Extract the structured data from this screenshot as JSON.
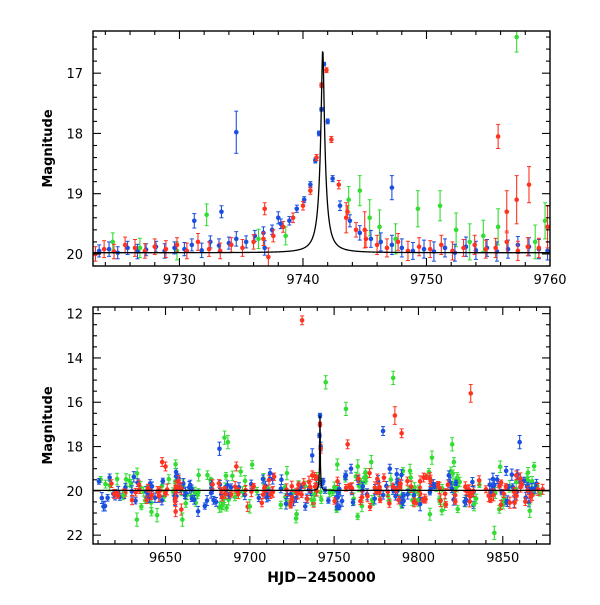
{
  "chart_data": [
    {
      "id": "top",
      "type": "scatter",
      "title": "",
      "xlabel": "",
      "ylabel": "Magnitude",
      "xlim": [
        9723,
        9760
      ],
      "ylim": [
        20.2,
        16.3
      ],
      "y_inverted": true,
      "grid": false,
      "xticks": [
        9730,
        9740,
        9750,
        9760
      ],
      "xtick_labels": [
        "9730",
        "9740",
        "9750",
        "9760"
      ],
      "yticks": [
        17,
        18,
        19,
        20
      ],
      "ytick_labels": [
        "17",
        "18",
        "19",
        "20"
      ],
      "model_curve": {
        "name": "model",
        "color": "#000000",
        "baseline": 19.98,
        "peak_time": 9741.6,
        "peak_mag": 16.6,
        "tE": 0.7
      },
      "series": [
        {
          "name": "blue",
          "color": "#1a4fe0",
          "x": [
            9723.5,
            9724.3,
            9725.0,
            9725.8,
            9726.6,
            9727.3,
            9728.1,
            9728.8,
            9729.6,
            9730.4,
            9731.0,
            9731.8,
            9732.5,
            9733.2,
            9734.0,
            9734.6,
            9735.4,
            9736.1,
            9736.8,
            9737.5,
            9738.2,
            9738.9,
            9739.5,
            9740.1,
            9740.6,
            9741.0,
            9741.3,
            9741.5,
            9741.7,
            9742.0,
            9742.4,
            9743.0,
            9743.8,
            9744.6,
            9745.5,
            9746.3,
            9747.2,
            9748.0,
            9748.9,
            9749.8,
            9750.6,
            9751.5,
            9752.3,
            9753.2,
            9754.0,
            9754.9,
            9755.7,
            9756.6,
            9757.4,
            9758.3,
            9759.1,
            9759.8,
            9731.2,
            9733.4,
            9734.6,
            9736.9,
            9738.0,
            9747.2
          ],
          "y": [
            19.95,
            19.92,
            19.98,
            19.9,
            19.96,
            19.93,
            19.88,
            19.95,
            19.9,
            19.92,
            19.85,
            19.94,
            19.8,
            19.86,
            19.82,
            19.75,
            19.8,
            19.7,
            19.65,
            19.6,
            19.5,
            19.45,
            19.25,
            19.1,
            18.85,
            18.45,
            18.0,
            17.6,
            16.85,
            17.8,
            18.75,
            19.2,
            19.45,
            19.65,
            19.75,
            19.8,
            19.85,
            19.9,
            19.95,
            19.92,
            19.96,
            19.9,
            19.98,
            19.88,
            19.94,
            19.9,
            19.96,
            19.92,
            19.85,
            19.88,
            19.92,
            19.95,
            19.45,
            19.3,
            17.98,
            19.9,
            19.4,
            18.9
          ],
          "err": [
            0.1,
            0.12,
            0.1,
            0.11,
            0.12,
            0.1,
            0.09,
            0.12,
            0.1,
            0.11,
            0.1,
            0.12,
            0.1,
            0.11,
            0.1,
            0.12,
            0.1,
            0.09,
            0.1,
            0.08,
            0.08,
            0.07,
            0.06,
            0.05,
            0.05,
            0.04,
            0.04,
            0.03,
            0.03,
            0.04,
            0.05,
            0.08,
            0.1,
            0.12,
            0.14,
            0.15,
            0.16,
            0.15,
            0.14,
            0.15,
            0.16,
            0.15,
            0.14,
            0.16,
            0.15,
            0.14,
            0.16,
            0.15,
            0.14,
            0.15,
            0.16,
            0.15,
            0.12,
            0.1,
            0.35,
            0.12,
            0.1,
            0.2
          ]
        },
        {
          "name": "green",
          "color": "#33dd33",
          "x": [
            9724.6,
            9726.8,
            9729.8,
            9732.2,
            9736.4,
            9738.6,
            9743.7,
            9744.6,
            9745.4,
            9746.2,
            9747.5,
            9749.3,
            9751.1,
            9752.4,
            9753.5,
            9754.6,
            9755.8,
            9757.3,
            9758.8,
            9759.6
          ],
          "y": [
            19.8,
            19.9,
            19.95,
            19.35,
            19.75,
            19.7,
            19.1,
            18.95,
            19.4,
            19.55,
            19.75,
            19.25,
            19.2,
            19.6,
            19.8,
            19.7,
            19.55,
            16.4,
            19.8,
            19.45
          ],
          "err": [
            0.15,
            0.16,
            0.15,
            0.18,
            0.16,
            0.15,
            0.22,
            0.25,
            0.3,
            0.28,
            0.25,
            0.3,
            0.25,
            0.28,
            0.3,
            0.26,
            0.3,
            0.25,
            0.28,
            0.3
          ]
        },
        {
          "name": "red",
          "color": "#ff3322",
          "x": [
            9723.2,
            9723.9,
            9724.7,
            9725.6,
            9726.4,
            9727.2,
            9728.0,
            9728.9,
            9729.8,
            9730.6,
            9731.5,
            9732.4,
            9733.3,
            9734.2,
            9735.1,
            9736.0,
            9736.8,
            9737.6,
            9738.4,
            9739.2,
            9740.0,
            9740.6,
            9741.1,
            9741.5,
            9741.9,
            9742.3,
            9742.9,
            9743.6,
            9744.3,
            9745.1,
            9746.0,
            9746.8,
            9747.7,
            9748.5,
            9749.4,
            9750.3,
            9751.2,
            9752.1,
            9753.0,
            9753.9,
            9754.8,
            9755.6,
            9756.5,
            9757.4,
            9758.2,
            9759.1,
            9736.9,
            9737.2,
            9743.5,
            9745.0,
            9755.8,
            9756.5,
            9757.3,
            9758.3,
            9759.8
          ],
          "y": [
            20.0,
            19.92,
            19.96,
            19.85,
            19.9,
            19.95,
            19.88,
            19.92,
            19.85,
            19.95,
            19.8,
            19.92,
            19.95,
            19.85,
            19.9,
            19.8,
            19.75,
            19.7,
            19.55,
            19.4,
            19.2,
            18.95,
            18.4,
            17.2,
            16.95,
            18.1,
            18.85,
            19.3,
            19.6,
            19.75,
            19.85,
            19.9,
            19.8,
            19.95,
            19.88,
            19.92,
            19.85,
            19.95,
            19.9,
            19.85,
            19.92,
            19.9,
            19.8,
            19.95,
            19.88,
            19.9,
            19.25,
            20.05,
            19.4,
            19.6,
            18.05,
            19.3,
            19.1,
            18.85,
            19.55
          ],
          "err": [
            0.12,
            0.14,
            0.12,
            0.13,
            0.14,
            0.12,
            0.13,
            0.14,
            0.12,
            0.13,
            0.14,
            0.12,
            0.13,
            0.12,
            0.14,
            0.12,
            0.11,
            0.1,
            0.09,
            0.08,
            0.07,
            0.06,
            0.05,
            0.04,
            0.04,
            0.05,
            0.07,
            0.1,
            0.12,
            0.14,
            0.16,
            0.15,
            0.14,
            0.16,
            0.15,
            0.14,
            0.16,
            0.15,
            0.14,
            0.16,
            0.15,
            0.16,
            0.18,
            0.16,
            0.15,
            0.16,
            0.1,
            0.15,
            0.25,
            0.3,
            0.2,
            0.35,
            0.4,
            0.3,
            0.35
          ]
        }
      ]
    },
    {
      "id": "bottom",
      "type": "scatter",
      "title": "",
      "xlabel": "HJD−2450000",
      "ylabel": "Magnitude",
      "xlim": [
        9607,
        9878
      ],
      "ylim": [
        22.4,
        11.7
      ],
      "y_inverted": true,
      "grid": false,
      "xticks": [
        9650,
        9700,
        9750,
        9800,
        9850
      ],
      "xtick_labels": [
        "9650",
        "9700",
        "9750",
        "9800",
        "9850"
      ],
      "yticks": [
        12,
        14,
        16,
        18,
        20,
        22
      ],
      "ytick_labels": [
        "12",
        "14",
        "16",
        "18",
        "20",
        "22"
      ],
      "model_curve": {
        "name": "model",
        "color": "#000000",
        "baseline": 19.98,
        "peak_time": 9741.6,
        "peak_mag": 16.6,
        "tE": 0.7
      },
      "dense_band": {
        "x_range": [
          9610,
          9875
        ],
        "center": 20.0,
        "scatter": 0.35,
        "points_per_series": 150
      },
      "series": [
        {
          "name": "blue",
          "color": "#1a4fe0",
          "x": [
            9642.0,
            9667.0,
            9682.0,
            9710.0,
            9737.0,
            9741.6,
            9741.3,
            9742.0,
            9757.0,
            9779.0,
            9783.0,
            9801.0,
            9818.0,
            9832.0,
            9852.0,
            9860.0,
            9712.0,
            9760.0,
            9680.0
          ],
          "y": [
            19.8,
            20.4,
            18.1,
            20.3,
            18.4,
            16.6,
            17.5,
            18.0,
            19.3,
            17.3,
            19.0,
            20.6,
            19.3,
            19.6,
            19.1,
            17.8,
            19.2,
            19.0,
            20.5
          ],
          "err": [
            0.2,
            0.2,
            0.3,
            0.2,
            0.3,
            0.1,
            0.1,
            0.2,
            0.2,
            0.2,
            0.2,
            0.3,
            0.2,
            0.2,
            0.2,
            0.3,
            0.2,
            0.2,
            0.2
          ]
        },
        {
          "name": "green",
          "color": "#33dd33",
          "x": [
            9625.0,
            9633.0,
            9645.0,
            9660.0,
            9685.0,
            9687.0,
            9700.0,
            9722.0,
            9745.0,
            9757.0,
            9772.0,
            9785.0,
            9795.0,
            9808.0,
            9820.0,
            9833.0,
            9845.0,
            9858.0,
            9866.0,
            9656.0,
            9738.0,
            9764.0,
            9800.0,
            9821.0
          ],
          "y": [
            20.2,
            21.3,
            21.1,
            21.3,
            17.6,
            17.8,
            20.7,
            19.2,
            15.1,
            16.3,
            18.7,
            14.9,
            19.1,
            18.5,
            17.9,
            20.6,
            21.9,
            19.6,
            20.9,
            18.8,
            20.4,
            18.9,
            20.4,
            18.7
          ],
          "err": [
            0.2,
            0.3,
            0.3,
            0.3,
            0.3,
            0.3,
            0.3,
            0.3,
            0.3,
            0.3,
            0.3,
            0.3,
            0.3,
            0.3,
            0.3,
            0.3,
            0.3,
            0.3,
            0.3,
            0.2,
            0.3,
            0.3,
            0.3,
            0.2
          ]
        },
        {
          "name": "red",
          "color": "#ff3322",
          "x": [
            9648.0,
            9650.0,
            9692.0,
            9731.0,
            9737.0,
            9741.6,
            9742.0,
            9758.0,
            9771.0,
            9786.0,
            9790.0,
            9803.0,
            9831.0,
            9848.0,
            9858.0
          ],
          "y": [
            18.7,
            18.9,
            18.9,
            12.3,
            19.3,
            17.0,
            18.1,
            17.9,
            19.2,
            16.6,
            17.4,
            19.4,
            15.6,
            19.8,
            19.3
          ],
          "err": [
            0.2,
            0.2,
            0.2,
            0.2,
            0.2,
            0.1,
            0.2,
            0.2,
            0.2,
            0.4,
            0.2,
            0.2,
            0.4,
            0.2,
            0.2
          ]
        }
      ]
    }
  ]
}
